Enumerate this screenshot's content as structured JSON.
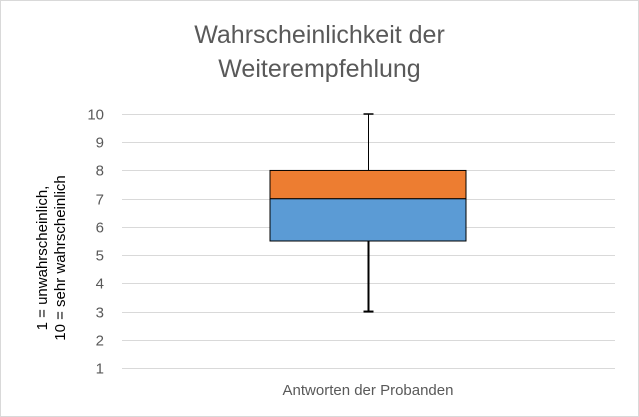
{
  "chart_data": {
    "type": "box",
    "title_lines": [
      "Wahrscheinlichkeit der",
      "Weiterempfehlung"
    ],
    "ylabel_lines": [
      "1 = unwahrscheinlich,",
      "10 = sehr wahrscheinlich"
    ],
    "xlabel": "Antworten der Probanden",
    "ylim": [
      1,
      10
    ],
    "yticks": [
      1,
      2,
      3,
      4,
      5,
      6,
      7,
      8,
      9,
      10
    ],
    "grid": true,
    "categories": [
      "Antworten der Probanden"
    ],
    "box": {
      "min": 3,
      "q1": 5.5,
      "median": 7,
      "q3": 8,
      "max": 10
    },
    "colors": {
      "lower_box": "#5b9bd5",
      "upper_box": "#ed7d31",
      "box_edge": "#000000",
      "whisker": "#000000",
      "grid": "#d9d9d9"
    }
  }
}
